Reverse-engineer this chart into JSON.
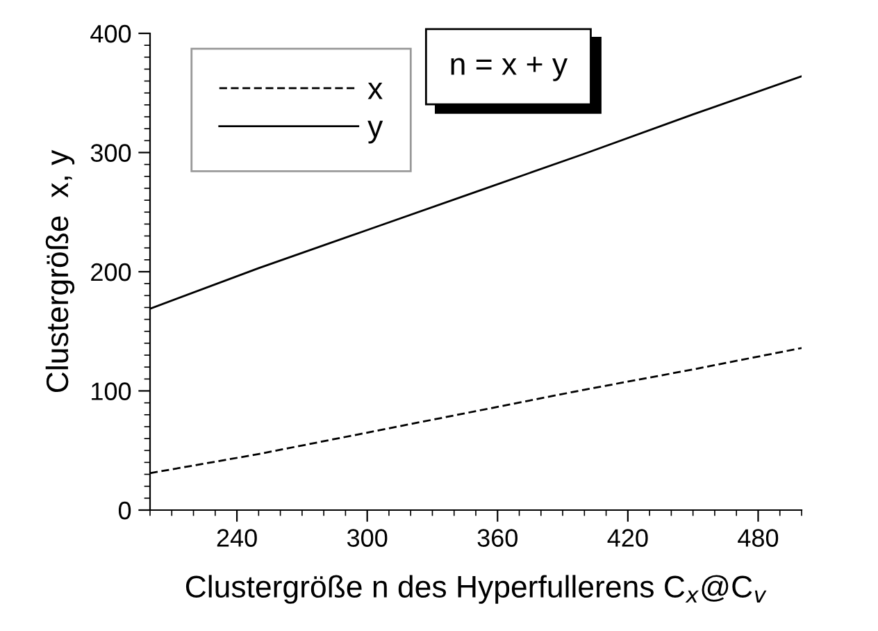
{
  "chart_data": {
    "type": "line",
    "xlabel": "Clustergröße n des Hyperfullerens C$_{x}$@C$_{v}$",
    "ylabel": "Clustergröße  x, y",
    "x": [
      200,
      250,
      300,
      350,
      400,
      450,
      500
    ],
    "series": [
      {
        "name": "x",
        "color": "#000000",
        "line_style": "dashed",
        "values": [
          31,
          47,
          65,
          83,
          101,
          118,
          136
        ]
      },
      {
        "name": "y",
        "color": "#000000",
        "line_style": "solid",
        "values": [
          169,
          203,
          235,
          267,
          299,
          332,
          364
        ]
      }
    ],
    "xlim": [
      200,
      500
    ],
    "xticks": [
      240,
      300,
      360,
      420,
      480
    ],
    "ylim": [
      0,
      400
    ],
    "yticks": [
      0,
      100,
      200,
      300,
      400
    ],
    "grid": false,
    "legend": "top left",
    "annotations": [
      "n = x + y"
    ]
  }
}
